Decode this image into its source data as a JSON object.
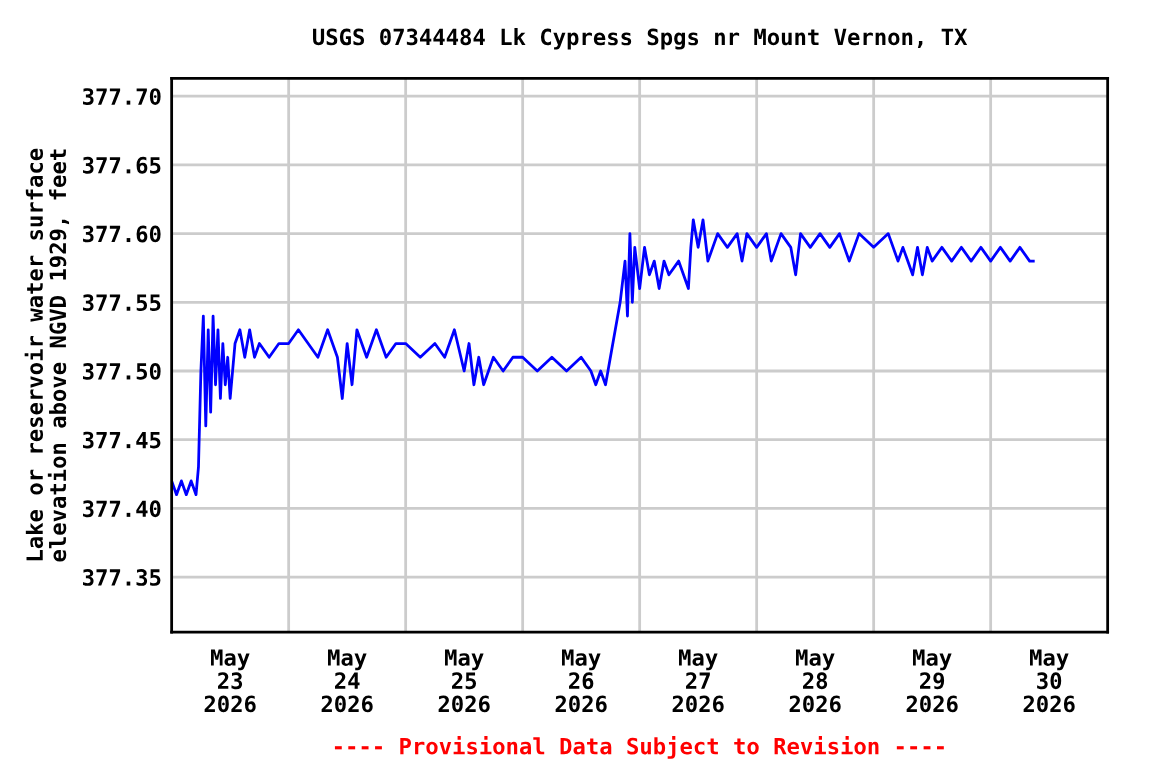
{
  "chart_data": {
    "type": "line",
    "title": "USGS 07344484 Lk Cypress Spgs nr Mount Vernon, TX",
    "ylabel": "Lake or reservoir water surface\nelevation above NGVD 1929, feet",
    "annotations": [
      "---- Provisional Data Subject to Revision ----"
    ],
    "series": [
      {
        "color": "#0000ff",
        "x": [
          "2026-05-23T00:00",
          "2026-05-23T01:00",
          "2026-05-23T02:00",
          "2026-05-23T03:00",
          "2026-05-23T04:00",
          "2026-05-23T05:00",
          "2026-05-23T05:30",
          "2026-05-23T06:00",
          "2026-05-23T06:30",
          "2026-05-23T07:00",
          "2026-05-23T07:30",
          "2026-05-23T08:00",
          "2026-05-23T08:30",
          "2026-05-23T09:00",
          "2026-05-23T09:30",
          "2026-05-23T10:00",
          "2026-05-23T10:30",
          "2026-05-23T11:00",
          "2026-05-23T11:30",
          "2026-05-23T12:00",
          "2026-05-23T13:00",
          "2026-05-23T14:00",
          "2026-05-23T15:00",
          "2026-05-23T16:00",
          "2026-05-23T17:00",
          "2026-05-23T18:00",
          "2026-05-23T20:00",
          "2026-05-23T22:00",
          "2026-05-24T00:00",
          "2026-05-24T02:00",
          "2026-05-24T04:00",
          "2026-05-24T06:00",
          "2026-05-24T08:00",
          "2026-05-24T10:00",
          "2026-05-24T11:00",
          "2026-05-24T12:00",
          "2026-05-24T13:00",
          "2026-05-24T14:00",
          "2026-05-24T16:00",
          "2026-05-24T18:00",
          "2026-05-24T20:00",
          "2026-05-24T22:00",
          "2026-05-25T00:00",
          "2026-05-25T03:00",
          "2026-05-25T06:00",
          "2026-05-25T08:00",
          "2026-05-25T10:00",
          "2026-05-25T12:00",
          "2026-05-25T13:00",
          "2026-05-25T14:00",
          "2026-05-25T15:00",
          "2026-05-25T16:00",
          "2026-05-25T18:00",
          "2026-05-25T20:00",
          "2026-05-25T22:00",
          "2026-05-26T00:00",
          "2026-05-26T03:00",
          "2026-05-26T06:00",
          "2026-05-26T09:00",
          "2026-05-26T12:00",
          "2026-05-26T14:00",
          "2026-05-26T15:00",
          "2026-05-26T16:00",
          "2026-05-26T17:00",
          "2026-05-26T18:00",
          "2026-05-26T19:00",
          "2026-05-26T20:00",
          "2026-05-26T21:00",
          "2026-05-26T21:30",
          "2026-05-26T22:00",
          "2026-05-26T22:30",
          "2026-05-26T23:00",
          "2026-05-27T00:00",
          "2026-05-27T01:00",
          "2026-05-27T02:00",
          "2026-05-27T03:00",
          "2026-05-27T04:00",
          "2026-05-27T05:00",
          "2026-05-27T06:00",
          "2026-05-27T08:00",
          "2026-05-27T09:00",
          "2026-05-27T10:00",
          "2026-05-27T10:30",
          "2026-05-27T11:00",
          "2026-05-27T12:00",
          "2026-05-27T13:00",
          "2026-05-27T14:00",
          "2026-05-27T16:00",
          "2026-05-27T18:00",
          "2026-05-27T20:00",
          "2026-05-27T21:00",
          "2026-05-27T22:00",
          "2026-05-28T00:00",
          "2026-05-28T02:00",
          "2026-05-28T03:00",
          "2026-05-28T05:00",
          "2026-05-28T07:00",
          "2026-05-28T08:00",
          "2026-05-28T09:00",
          "2026-05-28T11:00",
          "2026-05-28T13:00",
          "2026-05-28T15:00",
          "2026-05-28T17:00",
          "2026-05-28T19:00",
          "2026-05-28T21:00",
          "2026-05-29T00:00",
          "2026-05-29T03:00",
          "2026-05-29T05:00",
          "2026-05-29T06:00",
          "2026-05-29T07:00",
          "2026-05-29T08:00",
          "2026-05-29T09:00",
          "2026-05-29T10:00",
          "2026-05-29T11:00",
          "2026-05-29T12:00",
          "2026-05-29T14:00",
          "2026-05-29T16:00",
          "2026-05-29T18:00",
          "2026-05-29T20:00",
          "2026-05-29T22:00",
          "2026-05-30T00:00",
          "2026-05-30T02:00",
          "2026-05-30T04:00",
          "2026-05-30T06:00",
          "2026-05-30T08:00",
          "2026-05-30T08:45"
        ],
        "values": [
          377.42,
          377.41,
          377.42,
          377.41,
          377.42,
          377.41,
          377.43,
          377.5,
          377.54,
          377.46,
          377.53,
          377.47,
          377.54,
          377.49,
          377.53,
          377.48,
          377.52,
          377.49,
          377.51,
          377.48,
          377.52,
          377.53,
          377.51,
          377.53,
          377.51,
          377.52,
          377.51,
          377.52,
          377.52,
          377.53,
          377.52,
          377.51,
          377.53,
          377.51,
          377.48,
          377.52,
          377.49,
          377.53,
          377.51,
          377.53,
          377.51,
          377.52,
          377.52,
          377.51,
          377.52,
          377.51,
          377.53,
          377.5,
          377.52,
          377.49,
          377.51,
          377.49,
          377.51,
          377.5,
          377.51,
          377.51,
          377.5,
          377.51,
          377.5,
          377.51,
          377.5,
          377.49,
          377.5,
          377.49,
          377.51,
          377.53,
          377.55,
          377.58,
          377.54,
          377.6,
          377.55,
          377.59,
          377.56,
          377.59,
          377.57,
          377.58,
          377.56,
          377.58,
          377.57,
          377.58,
          377.57,
          377.56,
          377.59,
          377.61,
          377.59,
          377.61,
          377.58,
          377.6,
          377.59,
          377.6,
          377.58,
          377.6,
          377.59,
          377.6,
          377.58,
          377.6,
          377.59,
          377.57,
          377.6,
          377.59,
          377.6,
          377.59,
          377.6,
          377.58,
          377.6,
          377.59,
          377.6,
          377.58,
          377.59,
          377.58,
          377.57,
          377.59,
          377.57,
          377.59,
          377.58,
          377.59,
          377.58,
          377.59,
          377.58,
          377.59,
          377.58,
          377.59,
          377.58,
          377.59,
          377.58,
          377.58
        ]
      }
    ],
    "xlim": [
      "2026-05-23T00:00",
      "2026-05-31T00:00"
    ],
    "xticks": [
      {
        "value": "2026-05-24T00:00",
        "label": null
      },
      {
        "value": "2026-05-25T00:00",
        "label": null
      },
      {
        "value": "2026-05-26T00:00",
        "label": null
      },
      {
        "value": "2026-05-27T00:00",
        "label": null
      },
      {
        "value": "2026-05-28T00:00",
        "label": null
      },
      {
        "value": "2026-05-29T00:00",
        "label": null
      },
      {
        "value": "2026-05-30T00:00",
        "label": null
      },
      {
        "value": "2026-05-23T12:00",
        "label": "May\n23\n2026"
      },
      {
        "value": "2026-05-24T12:00",
        "label": "May\n24\n2026"
      },
      {
        "value": "2026-05-25T12:00",
        "label": "May\n25\n2026"
      },
      {
        "value": "2026-05-26T12:00",
        "label": "May\n26\n2026"
      },
      {
        "value": "2026-05-27T12:00",
        "label": "May\n27\n2026"
      },
      {
        "value": "2026-05-28T12:00",
        "label": "May\n28\n2026"
      },
      {
        "value": "2026-05-29T12:00",
        "label": "May\n29\n2026"
      },
      {
        "value": "2026-05-30T12:00",
        "label": "May\n30\n2026"
      }
    ],
    "ylim": [
      377.31,
      377.713
    ],
    "yticks": [
      {
        "value": 377.35,
        "label": "377.35"
      },
      {
        "value": 377.4,
        "label": "377.40"
      },
      {
        "value": 377.45,
        "label": "377.45"
      },
      {
        "value": 377.5,
        "label": "377.50"
      },
      {
        "value": 377.55,
        "label": "377.55"
      },
      {
        "value": 377.6,
        "label": "377.60"
      },
      {
        "value": 377.65,
        "label": "377.65"
      },
      {
        "value": 377.7,
        "label": "377.70"
      }
    ],
    "grid": true,
    "legend": false,
    "marker": "none",
    "line_style": "solid"
  }
}
